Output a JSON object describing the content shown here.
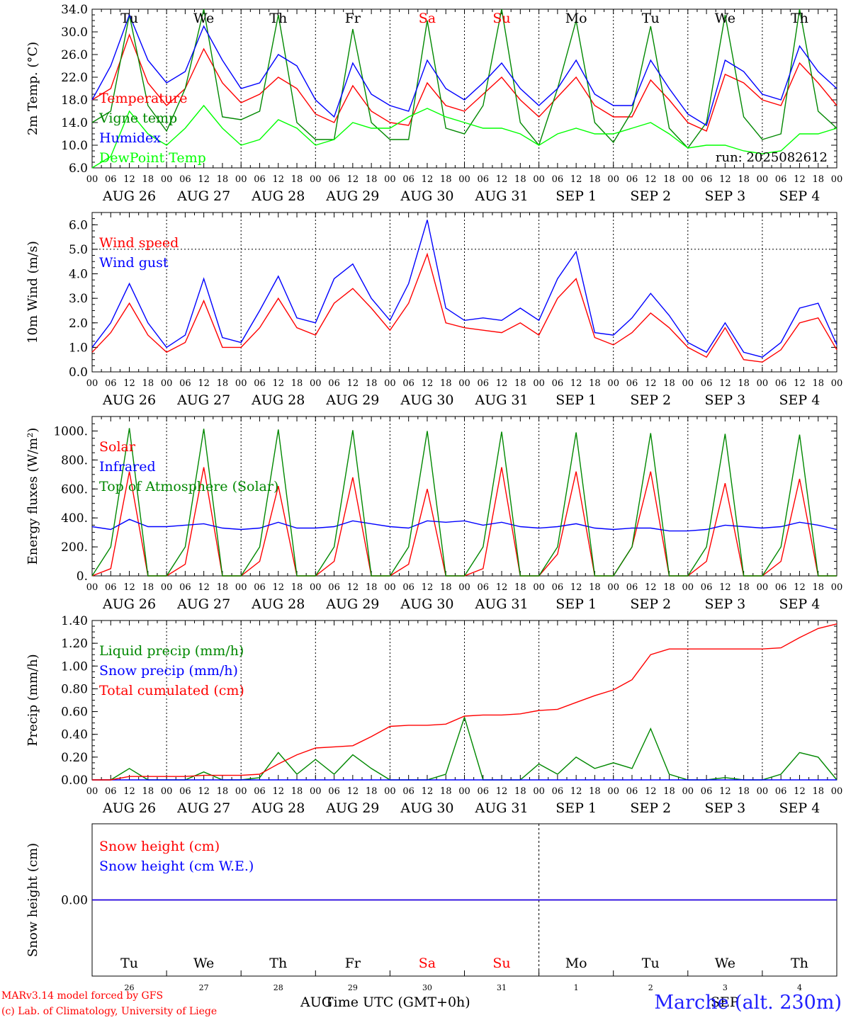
{
  "footer": {
    "credit1": "MARv3.14 model forced by GFS",
    "credit2": "(c) Lab. of Climatology, University of Liege",
    "xlabel": "Time UTC (GMT+0h)",
    "xlabel_month_a": "AUG",
    "xlabel_month_b": "SEP",
    "station": "Marche (alt. 230m)"
  },
  "colors": {
    "red": "#ff0000",
    "green": "#008800",
    "blue": "#0000ff",
    "lightgreen": "#00ff00",
    "grid": "#000000"
  },
  "days": [
    {
      "weekday": "Tu",
      "date": "AUG 26",
      "num": "26",
      "weekend": false
    },
    {
      "weekday": "We",
      "date": "AUG 27",
      "num": "27",
      "weekend": false
    },
    {
      "weekday": "Th",
      "date": "AUG 28",
      "num": "28",
      "weekend": false
    },
    {
      "weekday": "Fr",
      "date": "AUG 29",
      "num": "29",
      "weekend": false
    },
    {
      "weekday": "Sa",
      "date": "AUG 30",
      "num": "30",
      "weekend": true
    },
    {
      "weekday": "Su",
      "date": "AUG 31",
      "num": "31",
      "weekend": true
    },
    {
      "weekday": "Mo",
      "date": "SEP  1",
      "num": "1",
      "weekend": false
    },
    {
      "weekday": "Tu",
      "date": "SEP  2",
      "num": "2",
      "weekend": false
    },
    {
      "weekday": "We",
      "date": "SEP  3",
      "num": "3",
      "weekend": false
    },
    {
      "weekday": "Th",
      "date": "SEP  4",
      "num": "4",
      "weekend": false
    }
  ],
  "hour_labels": [
    "00",
    "06",
    "12",
    "18"
  ],
  "final_hour_label": "00",
  "chart_data": [
    {
      "type": "line",
      "id": "temperature",
      "ylabel": "2m Temp. (°C)",
      "ylim": [
        6,
        34
      ],
      "ytick_labels": [
        "6.0",
        "10.0",
        "14.0",
        "18.0",
        "22.0",
        "26.0",
        "30.0",
        "34.0"
      ],
      "ytick_values": [
        6,
        10,
        14,
        18,
        22,
        26,
        30,
        34
      ],
      "dotted_hline": null,
      "run_label": "run: 2025082612",
      "x_hours": [
        0,
        6,
        12,
        18,
        24,
        30,
        36,
        42,
        48,
        54,
        60,
        66,
        72,
        78,
        84,
        90,
        96,
        102,
        108,
        114,
        120,
        126,
        132,
        138,
        144,
        150,
        156,
        162,
        168,
        174,
        180,
        186,
        192,
        198,
        204,
        210,
        216,
        222,
        228,
        234,
        240
      ],
      "series": [
        {
          "name": "Temperature",
          "color": "red",
          "values": [
            18,
            20,
            29.5,
            21,
            17,
            20,
            27,
            21,
            17.5,
            19,
            22,
            20,
            15.5,
            14,
            20.5,
            16,
            14,
            13.5,
            21,
            17,
            16,
            19,
            22,
            18,
            15,
            18.5,
            22,
            17,
            15,
            15,
            21.5,
            18,
            14,
            12.5,
            22.5,
            21,
            18,
            17,
            24.5,
            21,
            17
          ]
        },
        {
          "name": "Vigne temp",
          "color": "green",
          "values": [
            14,
            16,
            33,
            17,
            12.5,
            20,
            34,
            15,
            14.5,
            16,
            33,
            14,
            11,
            11,
            30.5,
            14,
            11,
            11,
            32,
            13,
            12,
            17,
            34,
            14,
            10,
            20,
            32,
            14,
            10.5,
            16,
            31,
            13,
            9.5,
            14,
            33,
            15,
            11,
            12,
            34,
            16,
            13
          ]
        },
        {
          "name": "Humidex",
          "color": "blue",
          "values": [
            18,
            24,
            33,
            25,
            21,
            23,
            31,
            25,
            20,
            21,
            26,
            24,
            18,
            15,
            24.5,
            19,
            17,
            16,
            25,
            20,
            18,
            21,
            24.5,
            20,
            17,
            20,
            25,
            19,
            17,
            17,
            25,
            20,
            15.5,
            13.5,
            25,
            23,
            19,
            18,
            27.5,
            23,
            20
          ]
        },
        {
          "name": "DewPoint Temp",
          "color": "lightgreen",
          "values": [
            6,
            8,
            16,
            12,
            10,
            13,
            17,
            13,
            10,
            11,
            14.5,
            13,
            10,
            11,
            14,
            13,
            13,
            15,
            16.5,
            15,
            14,
            13,
            13,
            12,
            10,
            12,
            13,
            12,
            12,
            13,
            14,
            12,
            9.5,
            10,
            10,
            9,
            8.5,
            9,
            12,
            12,
            13
          ]
        }
      ]
    },
    {
      "type": "line",
      "id": "wind",
      "ylabel": "10m Wind (m/s)",
      "ylim": [
        0,
        6.5
      ],
      "ytick_labels": [
        "0.0",
        "1.0",
        "2.0",
        "3.0",
        "4.0",
        "5.0",
        "6.0"
      ],
      "ytick_values": [
        0,
        1,
        2,
        3,
        4,
        5,
        6
      ],
      "dotted_hline": 5,
      "x_hours": [
        0,
        6,
        12,
        18,
        24,
        30,
        36,
        42,
        48,
        54,
        60,
        66,
        72,
        78,
        84,
        90,
        96,
        102,
        108,
        114,
        120,
        126,
        132,
        138,
        144,
        150,
        156,
        162,
        168,
        174,
        180,
        186,
        192,
        198,
        204,
        210,
        216,
        222,
        228,
        234,
        240
      ],
      "series": [
        {
          "name": "Wind speed",
          "color": "red",
          "values": [
            0.8,
            1.6,
            2.8,
            1.5,
            0.8,
            1.2,
            2.9,
            1.0,
            1.0,
            1.8,
            3.0,
            1.8,
            1.5,
            2.8,
            3.4,
            2.6,
            1.7,
            2.8,
            4.8,
            2.0,
            1.8,
            1.7,
            1.6,
            2.0,
            1.5,
            3.0,
            3.8,
            1.4,
            1.1,
            1.6,
            2.4,
            1.8,
            1.0,
            0.6,
            1.8,
            0.5,
            0.4,
            0.9,
            2.0,
            2.2,
            0.9
          ]
        },
        {
          "name": "Wind gust",
          "color": "blue",
          "values": [
            1.0,
            2.0,
            3.6,
            2.0,
            1.0,
            1.5,
            3.8,
            1.4,
            1.2,
            2.5,
            3.9,
            2.2,
            2.0,
            3.8,
            4.4,
            3.0,
            2.1,
            3.6,
            6.2,
            2.6,
            2.1,
            2.2,
            2.1,
            2.6,
            2.1,
            3.8,
            4.9,
            1.6,
            1.5,
            2.2,
            3.2,
            2.3,
            1.2,
            0.8,
            2.0,
            0.8,
            0.6,
            1.2,
            2.6,
            2.8,
            1.1
          ]
        }
      ]
    },
    {
      "type": "line",
      "id": "energy",
      "ylabel": "Energy fluxes (W/m²)",
      "ylim": [
        0,
        1100
      ],
      "ytick_labels": [
        "0.",
        "200.",
        "400.",
        "600.",
        "800.",
        "1000."
      ],
      "ytick_values": [
        0,
        200,
        400,
        600,
        800,
        1000
      ],
      "dotted_hline": null,
      "x_hours": [
        0,
        6,
        12,
        18,
        24,
        30,
        36,
        42,
        48,
        54,
        60,
        66,
        72,
        78,
        84,
        90,
        96,
        102,
        108,
        114,
        120,
        126,
        132,
        138,
        144,
        150,
        156,
        162,
        168,
        174,
        180,
        186,
        192,
        198,
        204,
        210,
        216,
        222,
        228,
        234,
        240
      ],
      "series": [
        {
          "name": "Solar",
          "color": "red",
          "values": [
            0,
            50,
            720,
            0,
            0,
            80,
            750,
            0,
            0,
            100,
            620,
            0,
            0,
            100,
            680,
            0,
            0,
            80,
            600,
            0,
            0,
            50,
            750,
            0,
            0,
            150,
            720,
            0,
            0,
            200,
            720,
            0,
            0,
            100,
            640,
            0,
            0,
            100,
            670,
            0,
            0
          ]
        },
        {
          "name": "Infrared",
          "color": "blue",
          "values": [
            340,
            320,
            390,
            340,
            340,
            350,
            360,
            330,
            320,
            330,
            370,
            330,
            330,
            340,
            380,
            360,
            340,
            330,
            380,
            370,
            380,
            350,
            370,
            340,
            330,
            340,
            360,
            330,
            320,
            330,
            330,
            310,
            310,
            320,
            350,
            340,
            330,
            340,
            370,
            350,
            320
          ]
        },
        {
          "name": "Top of Atmosphere (Solar)",
          "color": "green",
          "values": [
            0,
            200,
            1020,
            0,
            0,
            200,
            1015,
            0,
            0,
            200,
            1010,
            0,
            0,
            200,
            1005,
            0,
            0,
            200,
            1000,
            0,
            0,
            200,
            995,
            0,
            0,
            200,
            990,
            0,
            0,
            200,
            985,
            0,
            0,
            200,
            980,
            0,
            0,
            200,
            975,
            0,
            0
          ]
        }
      ]
    },
    {
      "type": "line",
      "id": "precip",
      "ylabel": "Precip (mm/h)",
      "ylim": [
        0,
        1.4
      ],
      "ytick_labels": [
        "0.00",
        "0.20",
        "0.40",
        "0.60",
        "0.80",
        "1.00",
        "1.20",
        "1.40"
      ],
      "ytick_values": [
        0,
        0.2,
        0.4,
        0.6,
        0.8,
        1.0,
        1.2,
        1.4
      ],
      "dotted_hline": null,
      "x_hours": [
        0,
        6,
        12,
        18,
        24,
        30,
        36,
        42,
        48,
        54,
        60,
        66,
        72,
        78,
        84,
        90,
        96,
        102,
        108,
        114,
        120,
        126,
        132,
        138,
        144,
        150,
        156,
        162,
        168,
        174,
        180,
        186,
        192,
        198,
        204,
        210,
        216,
        222,
        228,
        234,
        240
      ],
      "series": [
        {
          "name": "Liquid precip (mm/h)",
          "color": "green",
          "values": [
            0,
            0,
            0.1,
            0,
            0,
            0,
            0.07,
            0,
            0,
            0.02,
            0.24,
            0.05,
            0.18,
            0.05,
            0.22,
            0.1,
            0,
            0,
            0,
            0.05,
            0.55,
            0,
            0,
            0,
            0.14,
            0.05,
            0.2,
            0.1,
            0.15,
            0.1,
            0.45,
            0.05,
            0,
            0,
            0.02,
            0,
            0,
            0.05,
            0.24,
            0.2,
            0
          ]
        },
        {
          "name": "Snow precip (mm/h)",
          "color": "blue",
          "values": [
            0,
            0,
            0,
            0,
            0,
            0,
            0,
            0,
            0,
            0,
            0,
            0,
            0,
            0,
            0,
            0,
            0,
            0,
            0,
            0,
            0,
            0,
            0,
            0,
            0,
            0,
            0,
            0,
            0,
            0,
            0,
            0,
            0,
            0,
            0,
            0,
            0,
            0,
            0,
            0,
            0
          ]
        },
        {
          "name": "Total cumulated (cm)",
          "color": "red",
          "values": [
            0,
            0,
            0.03,
            0.03,
            0.03,
            0.03,
            0.04,
            0.04,
            0.04,
            0.05,
            0.14,
            0.22,
            0.28,
            0.29,
            0.3,
            0.38,
            0.47,
            0.48,
            0.48,
            0.49,
            0.56,
            0.57,
            0.57,
            0.58,
            0.61,
            0.62,
            0.68,
            0.74,
            0.79,
            0.88,
            1.1,
            1.15,
            1.15,
            1.15,
            1.15,
            1.15,
            1.15,
            1.16,
            1.25,
            1.33,
            1.37
          ]
        }
      ]
    },
    {
      "type": "line",
      "id": "snow",
      "ylabel": "Snow height (cm)",
      "ylim": [
        -1,
        1
      ],
      "ytick_labels": [
        "0.00"
      ],
      "ytick_values": [
        0
      ],
      "dotted_hline": null,
      "x_hours": [
        0,
        240
      ],
      "series": [
        {
          "name": "Snow height (cm)",
          "color": "red",
          "values": [
            0,
            0
          ]
        },
        {
          "name": "Snow height (cm W.E.)",
          "color": "blue",
          "values": [
            0,
            0
          ]
        }
      ]
    }
  ]
}
